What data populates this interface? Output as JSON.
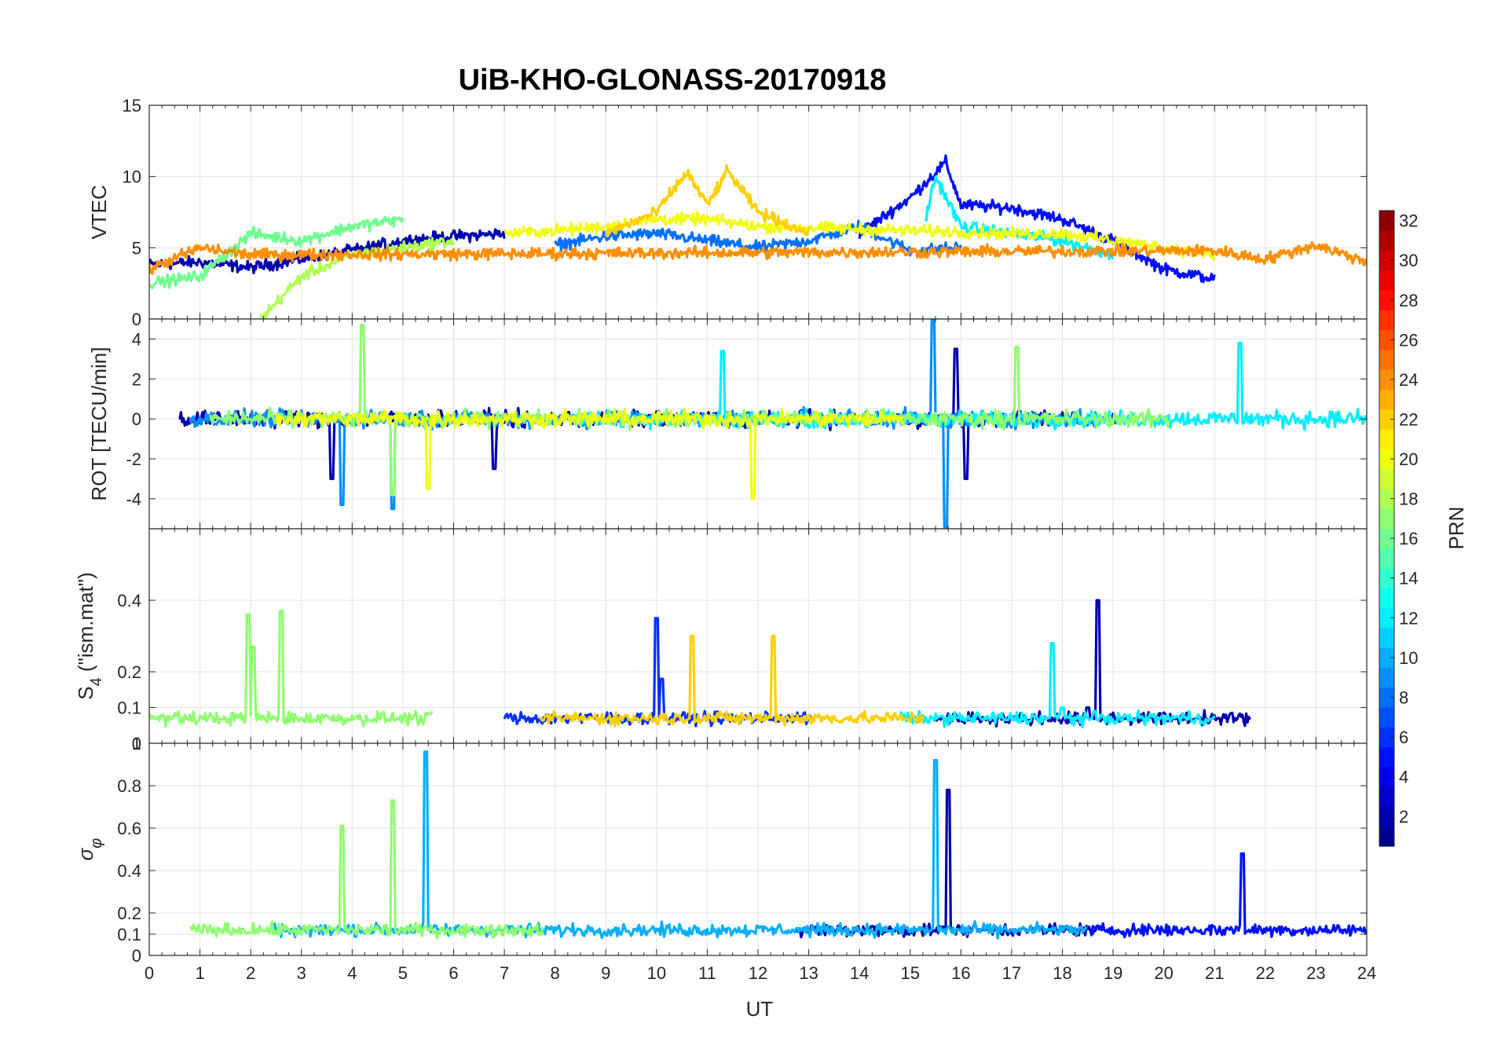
{
  "chart_data": {
    "type": "line",
    "title": "UiB-KHO-GLONASS-20170918",
    "xlabel": "UT",
    "xlim": [
      0,
      24
    ],
    "x_ticks": [
      0,
      1,
      2,
      3,
      4,
      5,
      6,
      7,
      8,
      9,
      10,
      11,
      12,
      13,
      14,
      15,
      16,
      17,
      18,
      19,
      20,
      21,
      22,
      23,
      24
    ],
    "x_tick_labels": [
      "0",
      "1",
      "2",
      "3",
      "4",
      "5",
      "6",
      "7",
      "8",
      "9",
      "10",
      "11",
      "12",
      "13",
      "14",
      "15",
      "16",
      "17",
      "18",
      "19",
      "20",
      "21",
      "22",
      "23",
      "24"
    ],
    "grid": true,
    "panels": [
      {
        "id": "vtec",
        "ylabel": "VTEC",
        "ylim": [
          0,
          15
        ],
        "y_ticks": [
          0,
          5,
          10,
          15
        ],
        "y_tick_labels": [
          "0",
          "5",
          "10",
          "15"
        ],
        "series": [
          {
            "prn": 2,
            "x": [
              0,
              1,
              2,
              3,
              4,
              5,
              6,
              7
            ],
            "values": [
              3.8,
              4.0,
              3.6,
              4.2,
              4.8,
              5.5,
              5.8,
              6.0
            ]
          },
          {
            "prn": 5,
            "x": [
              14,
              15,
              15.7,
              16,
              17,
              18,
              19,
              20,
              21
            ],
            "values": [
              6.0,
              8.5,
              11.0,
              8.0,
              7.8,
              7.0,
              5.5,
              3.5,
              2.8
            ]
          },
          {
            "prn": 8,
            "x": [
              8,
              9,
              10,
              11,
              12,
              13,
              14,
              15,
              16
            ],
            "values": [
              5.2,
              5.8,
              6.0,
              5.5,
              5.0,
              5.5,
              6.5,
              4.8,
              5.0
            ]
          },
          {
            "prn": 12,
            "x": [
              15.3,
              15.5,
              16,
              17,
              18,
              19
            ],
            "values": [
              7.0,
              10.0,
              6.5,
              6.0,
              5.5,
              4.5
            ]
          },
          {
            "prn": 16,
            "x": [
              0,
              1,
              2,
              3,
              4,
              5
            ],
            "values": [
              2.5,
              3.0,
              6.0,
              5.5,
              6.5,
              7.0
            ]
          },
          {
            "prn": 18,
            "x": [
              2.2,
              3,
              4,
              5,
              6
            ],
            "values": [
              0.0,
              3.0,
              4.5,
              5.0,
              5.5
            ]
          },
          {
            "prn": 20,
            "x": [
              7,
              8,
              9,
              10,
              11,
              12,
              17,
              18,
              19,
              20,
              21
            ],
            "values": [
              6.0,
              6.2,
              6.5,
              7.0,
              7.0,
              6.5,
              6.0,
              6.0,
              5.5,
              5.0,
              4.5
            ]
          },
          {
            "prn": 22,
            "x": [
              9,
              10,
              10.6,
              11,
              11.4,
              12,
              13
            ],
            "values": [
              6.0,
              7.5,
              10.3,
              8.0,
              10.4,
              7.5,
              6.0
            ]
          },
          {
            "prn": 24,
            "x": [
              0,
              1,
              2,
              21,
              22,
              23,
              24
            ],
            "values": [
              3.5,
              5.0,
              4.5,
              4.8,
              4.2,
              5.2,
              4.0
            ]
          }
        ]
      },
      {
        "id": "rot",
        "ylabel": "ROT [TECU/min]",
        "ylim": [
          -5.5,
          5
        ],
        "y_ticks": [
          -4,
          -2,
          0,
          2,
          4
        ],
        "y_tick_labels": [
          "-4",
          "-2",
          "0",
          "2",
          "4"
        ],
        "series": [
          {
            "prn": 2,
            "x": [
              3.6,
              6.8,
              15.9,
              16.1
            ],
            "values": [
              -3.0,
              -2.5,
              3.5,
              -3.0
            ]
          },
          {
            "prn": 9,
            "x": [
              3.8,
              4.8,
              15.45,
              15.7
            ],
            "values": [
              -4.3,
              -4.5,
              5.0,
              -5.5
            ]
          },
          {
            "prn": 12,
            "x": [
              11.3,
              21.5
            ],
            "values": [
              3.4,
              3.8
            ]
          },
          {
            "prn": 17,
            "x": [
              4.2,
              4.8,
              17.1
            ],
            "values": [
              4.7,
              -3.8,
              3.6
            ]
          },
          {
            "prn": 20,
            "x": [
              5.5,
              11.9
            ],
            "values": [
              -3.5,
              -4.0
            ]
          }
        ]
      },
      {
        "id": "s4",
        "ylabel": "S4 (\"ism.mat\")",
        "ylabel_main": "S",
        "ylabel_sub": "4",
        "ylabel_rest": " (\"ism.mat\")",
        "ylim": [
          0,
          0.6
        ],
        "y_ticks": [
          0,
          0.1,
          0.2,
          0.4
        ],
        "y_tick_labels": [
          "0",
          "0.1",
          "0.2",
          "0.4"
        ],
        "series": [
          {
            "prn": 2,
            "x": [
              18.5,
              18.7
            ],
            "values": [
              0.1,
              0.4
            ]
          },
          {
            "prn": 6,
            "x": [
              10.0,
              10.1
            ],
            "values": [
              0.35,
              0.18
            ]
          },
          {
            "prn": 12,
            "x": [
              17.8,
              18.0
            ],
            "values": [
              0.28,
              0.1
            ]
          },
          {
            "prn": 17,
            "x": [
              1.95,
              2.05,
              2.6
            ],
            "values": [
              0.36,
              0.27,
              0.37
            ]
          },
          {
            "prn": 22,
            "x": [
              10.7,
              12.3
            ],
            "values": [
              0.3,
              0.3
            ]
          }
        ]
      },
      {
        "id": "sigma",
        "ylabel": "σφ",
        "ylabel_main": "σ",
        "ylabel_sub": "φ",
        "ylim": [
          0,
          1
        ],
        "y_ticks": [
          0,
          0.1,
          0.2,
          0.4,
          0.6,
          0.8,
          1
        ],
        "y_tick_labels": [
          "0",
          "0.1",
          "0.2",
          "0.4",
          "0.6",
          "0.8",
          "1"
        ],
        "series": [
          {
            "prn": 2,
            "x": [
              15.75
            ],
            "values": [
              0.78
            ]
          },
          {
            "prn": 5,
            "x": [
              21.55
            ],
            "values": [
              0.48
            ]
          },
          {
            "prn": 10,
            "x": [
              5.45,
              15.5
            ],
            "values": [
              0.96,
              0.92
            ]
          },
          {
            "prn": 17,
            "x": [
              3.8,
              4.8
            ],
            "values": [
              0.61,
              0.73
            ]
          }
        ]
      }
    ],
    "colorbar": {
      "label": "PRN",
      "range": [
        1,
        32
      ],
      "tick_labels": [
        "2",
        "4",
        "6",
        "8",
        "10",
        "12",
        "14",
        "16",
        "18",
        "20",
        "22",
        "24",
        "26",
        "28",
        "30",
        "32"
      ],
      "colormap": "jet"
    }
  }
}
